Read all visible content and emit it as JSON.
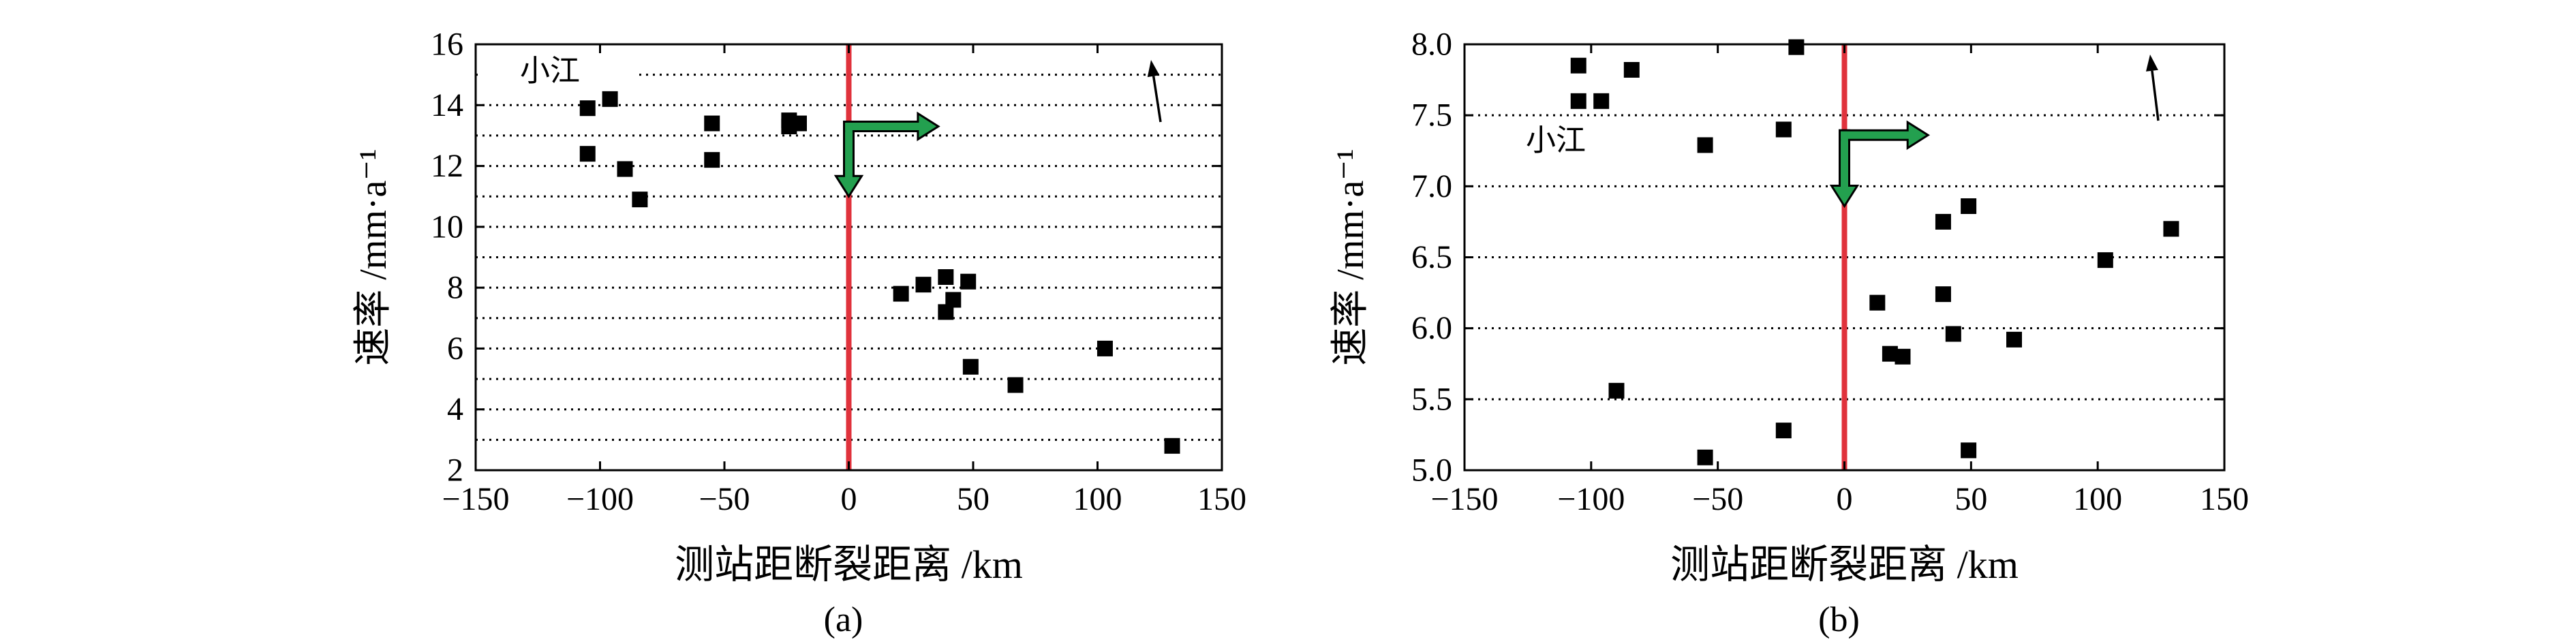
{
  "chart_data": [
    {
      "type": "scatter",
      "caption": "(a)",
      "xlabel": "测站距断裂距离 /km",
      "ylabel": "速率 /mm·a⁻¹",
      "xlim": [
        -150,
        150
      ],
      "ylim": [
        2,
        16
      ],
      "xticks": [
        -150,
        -100,
        -50,
        0,
        50,
        100,
        150
      ],
      "xtick_labels": [
        "−150",
        "−100",
        "−50",
        "0",
        "50",
        "100",
        "150"
      ],
      "yticks": [
        2,
        4,
        6,
        8,
        10,
        12,
        14,
        16
      ],
      "ytick_labels": [
        "2",
        "4",
        "6",
        "8",
        "10",
        "12",
        "14",
        "16"
      ],
      "grid_y": [
        3,
        4,
        5,
        6,
        7,
        8,
        9,
        10,
        11,
        12,
        13,
        14,
        15
      ],
      "reference_line_x": 0,
      "annotations": [
        {
          "text": "小江"
        }
      ],
      "points": [
        {
          "x": -105,
          "y": 13.9
        },
        {
          "x": -96,
          "y": 14.2
        },
        {
          "x": -105,
          "y": 12.4
        },
        {
          "x": -90,
          "y": 11.9
        },
        {
          "x": -84,
          "y": 10.9
        },
        {
          "x": -55,
          "y": 13.4
        },
        {
          "x": -55,
          "y": 12.2
        },
        {
          "x": -24,
          "y": 13.5
        },
        {
          "x": -24,
          "y": 13.3
        },
        {
          "x": -20,
          "y": 13.4
        },
        {
          "x": 21,
          "y": 7.8
        },
        {
          "x": 30,
          "y": 8.1
        },
        {
          "x": 39,
          "y": 8.35
        },
        {
          "x": 42,
          "y": 7.6
        },
        {
          "x": 39,
          "y": 7.2
        },
        {
          "x": 48,
          "y": 8.2
        },
        {
          "x": 49,
          "y": 5.4
        },
        {
          "x": 67,
          "y": 4.8
        },
        {
          "x": 103,
          "y": 6.0
        },
        {
          "x": 130,
          "y": 2.8
        }
      ]
    },
    {
      "type": "scatter",
      "caption": "(b)",
      "xlabel": "测站距断裂距离 /km",
      "ylabel": "速率 /mm·a⁻¹",
      "xlim": [
        -150,
        150
      ],
      "ylim": [
        5.0,
        8.0
      ],
      "xticks": [
        -150,
        -100,
        -50,
        0,
        50,
        100,
        150
      ],
      "xtick_labels": [
        "−150",
        "−100",
        "−50",
        "0",
        "50",
        "100",
        "150"
      ],
      "yticks": [
        5.0,
        5.5,
        6.0,
        6.5,
        7.0,
        7.5,
        8.0
      ],
      "ytick_labels": [
        "5.0",
        "5.5",
        "6.0",
        "6.5",
        "7.0",
        "7.5",
        "8.0"
      ],
      "grid_y": [
        5.5,
        6.0,
        6.5,
        7.0,
        7.5
      ],
      "reference_line_x": 0,
      "annotations": [
        {
          "text": "小江"
        }
      ],
      "points": [
        {
          "x": -105,
          "y": 7.85
        },
        {
          "x": -84,
          "y": 7.82
        },
        {
          "x": -19,
          "y": 7.98
        },
        {
          "x": -105,
          "y": 7.6
        },
        {
          "x": -96,
          "y": 7.6
        },
        {
          "x": -24,
          "y": 7.4
        },
        {
          "x": -55,
          "y": 7.29
        },
        {
          "x": 49,
          "y": 6.86
        },
        {
          "x": 39,
          "y": 6.75
        },
        {
          "x": 129,
          "y": 6.7
        },
        {
          "x": 103,
          "y": 6.48
        },
        {
          "x": 39,
          "y": 6.24
        },
        {
          "x": 13,
          "y": 6.18
        },
        {
          "x": 43,
          "y": 5.96
        },
        {
          "x": 67,
          "y": 5.92
        },
        {
          "x": 18,
          "y": 5.82
        },
        {
          "x": 23,
          "y": 5.8
        },
        {
          "x": -90,
          "y": 5.56
        },
        {
          "x": -24,
          "y": 5.28
        },
        {
          "x": -55,
          "y": 5.09
        },
        {
          "x": 49,
          "y": 5.14
        }
      ]
    }
  ],
  "colors": {
    "reference_line": "#e0323c",
    "arrow_fill": "#23a04f",
    "marker": "#000000",
    "axes": "#000000"
  },
  "icons": {
    "motion_arrows": "green-velocity-arrow-icon",
    "north_arrow": "north-arrow-icon"
  }
}
